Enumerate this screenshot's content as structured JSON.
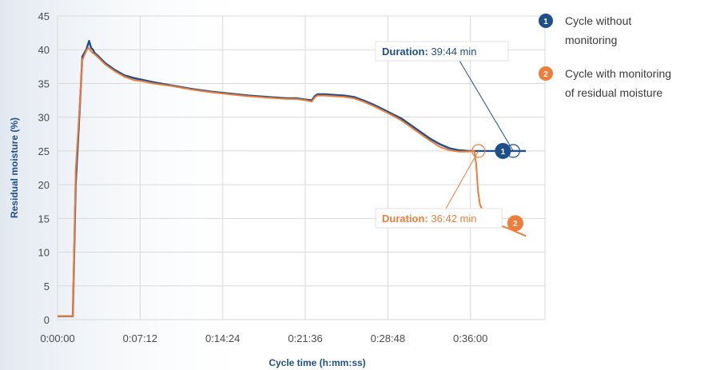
{
  "chart_data": {
    "type": "line",
    "title": "",
    "xlabel": "Cycle time (h:mm:ss)",
    "ylabel": "Residual moisture  (%)",
    "xlim": [
      0,
      2550
    ],
    "ylim": [
      0,
      45
    ],
    "grid": true,
    "x_unit": "seconds",
    "x_ticks": [
      {
        "value": 0,
        "label": "0:00:00"
      },
      {
        "value": 432,
        "label": "0:07:12"
      },
      {
        "value": 864,
        "label": "0:14:24"
      },
      {
        "value": 1296,
        "label": "0:21:36"
      },
      {
        "value": 1728,
        "label": "0:28:48"
      },
      {
        "value": 2160,
        "label": "0:36:00"
      }
    ],
    "y_ticks": [
      0,
      5,
      10,
      15,
      20,
      25,
      30,
      35,
      40,
      45
    ],
    "legend_position": "right",
    "series": [
      {
        "name": "Cycle without monitoring",
        "marker": "1",
        "color": "#1f4f8a",
        "x": [
          0,
          70,
          80,
          95,
          110,
          130,
          150,
          165,
          175,
          185,
          195,
          215,
          250,
          300,
          350,
          400,
          450,
          500,
          600,
          700,
          800,
          900,
          1000,
          1100,
          1200,
          1250,
          1300,
          1330,
          1345,
          1360,
          1400,
          1450,
          1500,
          1550,
          1600,
          1650,
          1700,
          1750,
          1800,
          1850,
          1900,
          1950,
          2000,
          2050,
          2100,
          2150,
          2200,
          2250,
          2300,
          2384,
          2450
        ],
        "y": [
          0.5,
          0.5,
          0.5,
          20,
          28,
          39,
          40,
          41.3,
          40.3,
          40,
          39.5,
          39,
          38,
          37,
          36.2,
          35.8,
          35.5,
          35.2,
          34.7,
          34.2,
          33.8,
          33.5,
          33.2,
          33.0,
          32.8,
          32.8,
          32.6,
          32.5,
          33.1,
          33.4,
          33.4,
          33.3,
          33.2,
          33.0,
          32.5,
          31.9,
          31.2,
          30.5,
          29.8,
          28.8,
          27.8,
          26.8,
          26.0,
          25.4,
          25.1,
          25.0,
          25.0,
          25.0,
          25.0,
          25.0,
          25.0
        ]
      },
      {
        "name": "Cycle with monitoring of residual moisture",
        "marker": "2",
        "color": "#ee7d3a",
        "x": [
          0,
          70,
          80,
          95,
          110,
          130,
          150,
          160,
          170,
          180,
          195,
          215,
          250,
          300,
          350,
          400,
          450,
          500,
          600,
          700,
          800,
          900,
          1000,
          1100,
          1200,
          1250,
          1300,
          1330,
          1345,
          1360,
          1400,
          1450,
          1500,
          1550,
          1600,
          1650,
          1700,
          1750,
          1800,
          1850,
          1900,
          1950,
          2000,
          2050,
          2100,
          2150,
          2180,
          2190,
          2200,
          2210,
          2225,
          2240,
          2270,
          2300,
          2330,
          2360,
          2400,
          2450
        ],
        "y": [
          0.5,
          0.5,
          0.5,
          22,
          29,
          38.5,
          39.8,
          40.3,
          40.0,
          39.6,
          39.3,
          38.8,
          37.8,
          36.8,
          36.0,
          35.5,
          35.3,
          35.0,
          34.6,
          34.1,
          33.7,
          33.4,
          33.1,
          32.9,
          32.7,
          32.7,
          32.5,
          32.3,
          32.9,
          33.2,
          33.2,
          33.1,
          33.0,
          32.8,
          32.3,
          31.7,
          31.0,
          30.3,
          29.5,
          28.5,
          27.5,
          26.5,
          25.6,
          25.1,
          24.9,
          24.9,
          25.0,
          23.0,
          19.0,
          17.0,
          16.2,
          15.6,
          15.0,
          14.3,
          13.8,
          13.5,
          13.0,
          12.4
        ]
      }
    ],
    "annotations": [
      {
        "marker": "1",
        "label": "Duration:",
        "value": "39:44 min",
        "color": "#1f4f8a",
        "end_x": 2384,
        "end_y": 25
      },
      {
        "marker": "2",
        "label": "Duration:",
        "value": "36:42 min",
        "color": "#ee7d3a",
        "end_x": 2202,
        "end_y": 25
      }
    ],
    "legend": [
      {
        "marker": "1",
        "line1": "Cycle without",
        "line2": "monitoring",
        "color": "#1f4f8a"
      },
      {
        "marker": "2",
        "line1": "Cycle with monitoring",
        "line2": "of residual moisture",
        "color": "#ee7d3a"
      }
    ]
  }
}
